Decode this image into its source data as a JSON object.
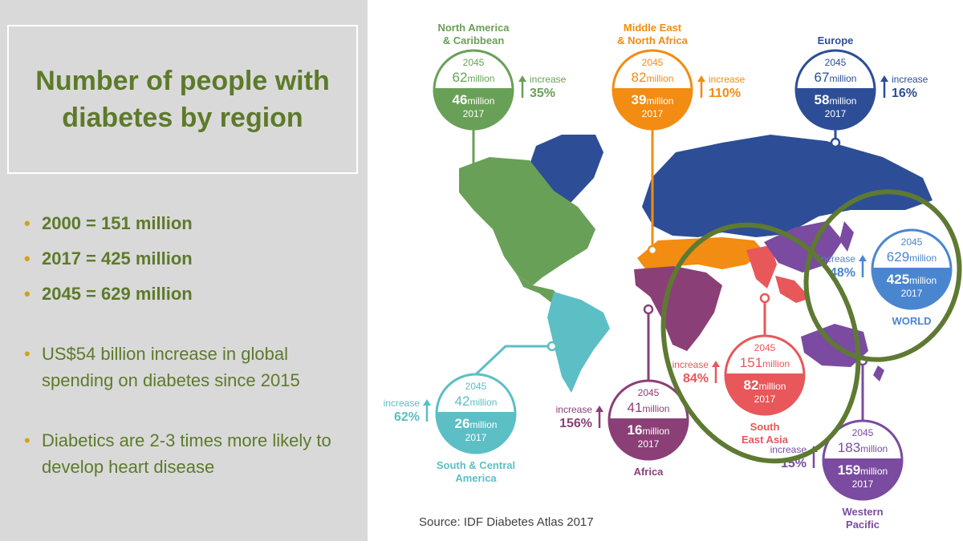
{
  "title": "Number of people with diabetes by region",
  "bullets": [
    "2000 = 151 million",
    "2017 = 425 million",
    "2045 = 629 million",
    "US$54 billion increase in global spending on diabetes since 2015",
    "Diabetics are 2-3 times more likely to develop heart disease"
  ],
  "source": "Source: IDF Diabetes Atlas 2017",
  "labels": {
    "year_2045": "2045",
    "year_2017": "2017",
    "million": "million",
    "increase": "increase"
  },
  "regions": [
    {
      "id": "north-america-caribbean",
      "name_lines": [
        "North America",
        "& Caribbean"
      ],
      "y2045": 62,
      "y2017": 46,
      "increase": "35%",
      "color": "#69a057"
    },
    {
      "id": "middle-east-north-africa",
      "name_lines": [
        "Middle East",
        "& North Africa"
      ],
      "y2045": 82,
      "y2017": 39,
      "increase": "110%",
      "color": "#f28c12"
    },
    {
      "id": "europe",
      "name_lines": [
        "Europe"
      ],
      "y2045": 67,
      "y2017": 58,
      "increase": "16%",
      "color": "#2d4e96"
    },
    {
      "id": "world",
      "name_lines": [
        "WORLD"
      ],
      "y2045": 629,
      "y2017": 425,
      "increase": "48%",
      "color": "#4a86d0"
    },
    {
      "id": "south-east-asia",
      "name_lines": [
        "South",
        "East Asia"
      ],
      "y2045": 151,
      "y2017": 82,
      "increase": "84%",
      "color": "#e8575a"
    },
    {
      "id": "south-central-america",
      "name_lines": [
        "South & Central",
        "America"
      ],
      "y2045": 42,
      "y2017": 26,
      "increase": "62%",
      "color": "#5bbfc5"
    },
    {
      "id": "africa",
      "name_lines": [
        "Africa"
      ],
      "y2045": 41,
      "y2017": 16,
      "increase": "156%",
      "color": "#8b3f77"
    },
    {
      "id": "western-pacific",
      "name_lines": [
        "Western",
        "Pacific"
      ],
      "y2045": 183,
      "y2017": 159,
      "increase": "15%",
      "color": "#7a4ba0"
    }
  ],
  "colors": {
    "title_green": "#5d7a2a",
    "bullet_gold": "#d4a018",
    "highlight_ring": "#5e7a32"
  }
}
